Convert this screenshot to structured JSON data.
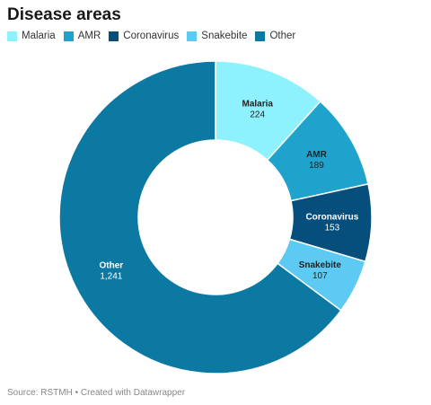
{
  "title": "Disease areas",
  "source": "Source: RSTMH • Created with Datawrapper",
  "chart_data": {
    "type": "pie",
    "title": "Disease areas",
    "categories": [
      "Malaria",
      "AMR",
      "Coronavirus",
      "Snakebite",
      "Other"
    ],
    "values": [
      224,
      189,
      153,
      107,
      1241
    ],
    "value_labels": [
      "224",
      "189",
      "153",
      "107",
      "1,241"
    ],
    "colors": [
      "#8df2fd",
      "#1fa3cc",
      "#064f7d",
      "#5ccaf3",
      "#0c79a2"
    ],
    "label_colors": [
      "#222222",
      "#222222",
      "#ffffff",
      "#222222",
      "#ffffff"
    ],
    "legend": "top-left",
    "donut": true
  }
}
